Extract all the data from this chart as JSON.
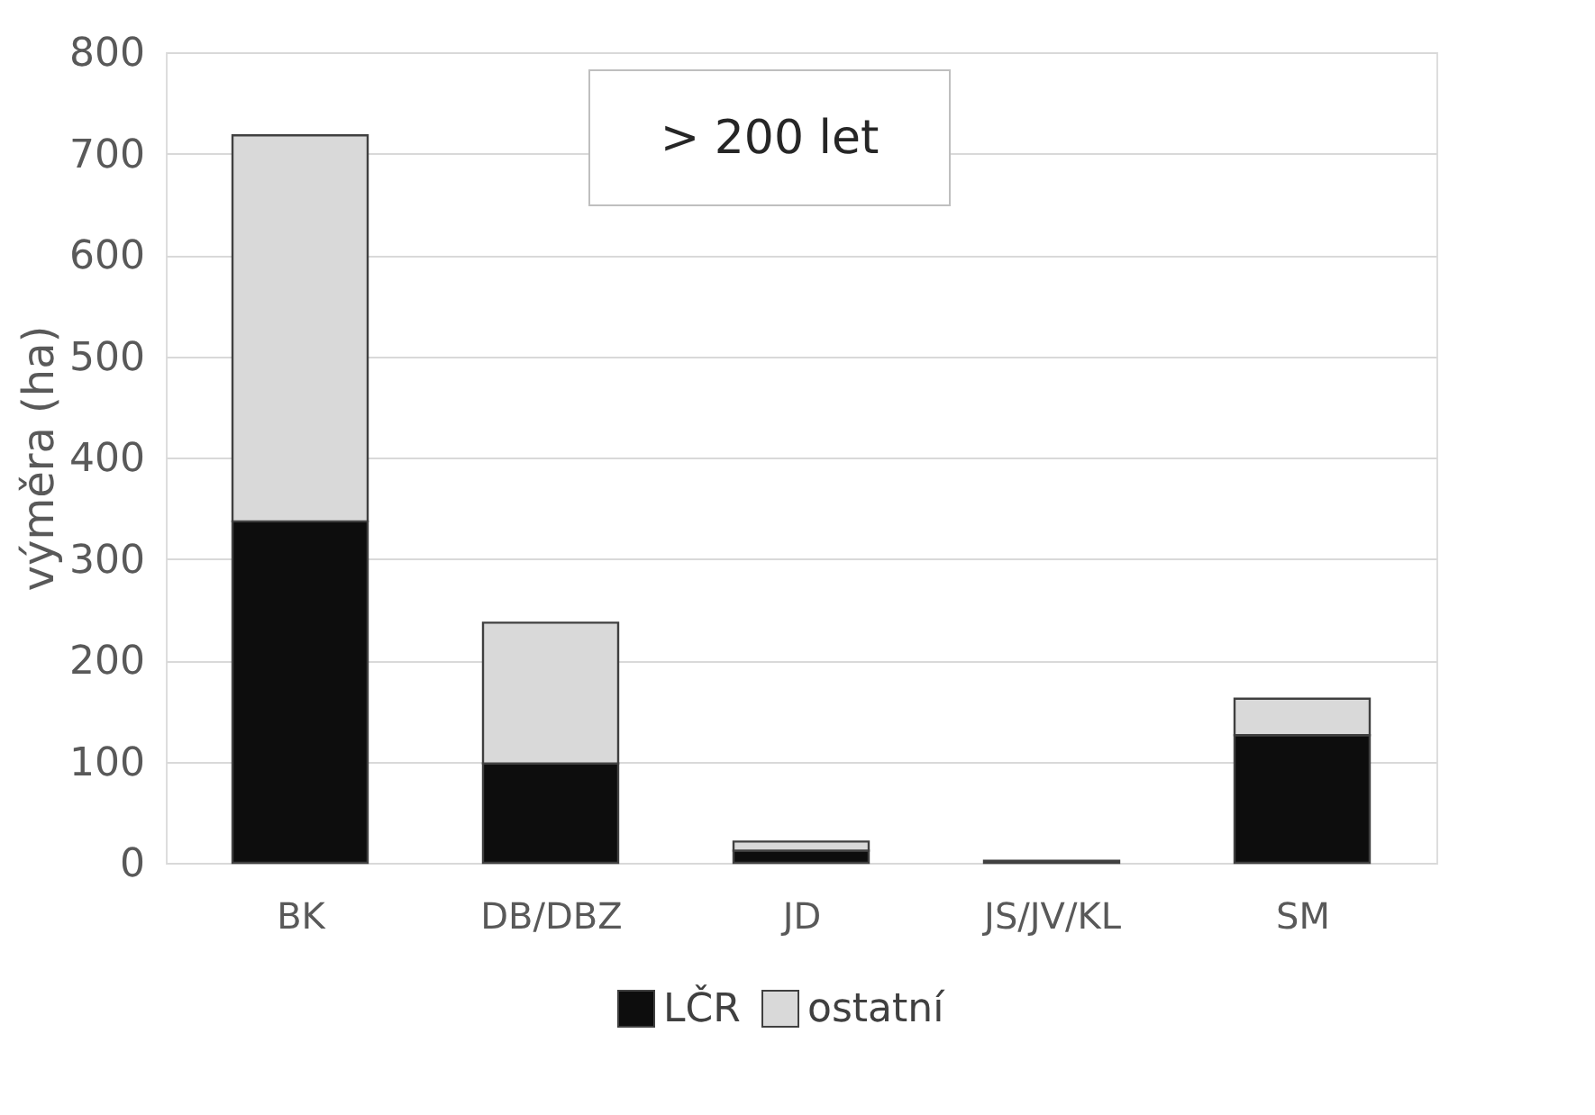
{
  "chart_data": {
    "type": "bar",
    "title": "> 200 let",
    "ylabel": "výměra (ha)",
    "categories": [
      "BK",
      "DB/DBZ",
      "JD",
      "JS/JV/KL",
      "SM"
    ],
    "series": [
      {
        "name": "LČR",
        "color": "#0d0d0d",
        "values": [
          337,
          98,
          12,
          2,
          126
        ]
      },
      {
        "name": "ostatní",
        "color": "#d9d9d9",
        "values": [
          381,
          139,
          9,
          null,
          36
        ]
      }
    ],
    "stacked": true,
    "ylim": [
      0,
      800
    ],
    "yticks": [
      0,
      100,
      200,
      300,
      400,
      500,
      600,
      700,
      800
    ],
    "grid": "y",
    "legend": "bottom"
  }
}
